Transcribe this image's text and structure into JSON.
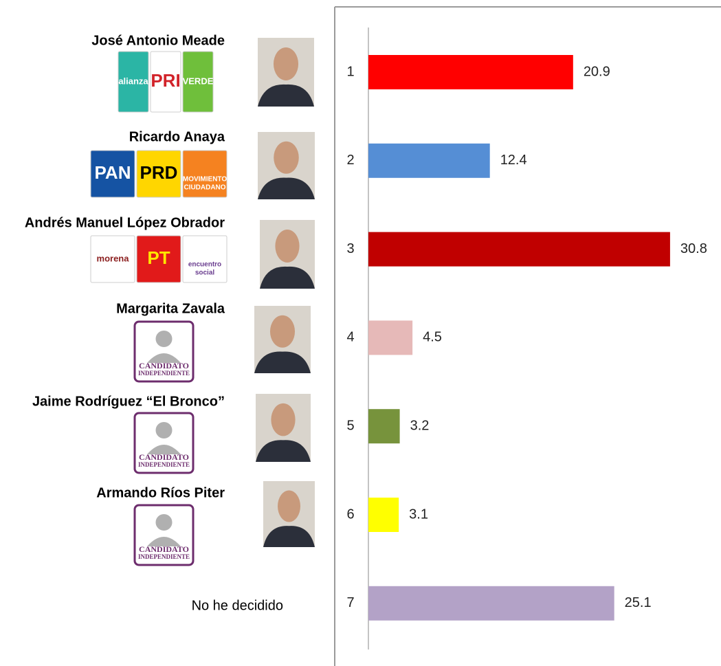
{
  "chart_data": {
    "type": "bar",
    "orientation": "horizontal",
    "categories": [
      "1",
      "2",
      "3",
      "4",
      "5",
      "6",
      "7"
    ],
    "values": [
      20.9,
      12.4,
      30.8,
      4.5,
      3.2,
      3.1,
      25.1
    ],
    "colors": [
      "#ff0000",
      "#558ed5",
      "#c00000",
      "#e6b9b8",
      "#77933c",
      "#ffff00",
      "#b3a2c7"
    ]
  },
  "candidates": [
    {
      "name": "José Antonio Meade",
      "logos": [
        {
          "lines": [
            "alianza"
          ],
          "bg": "#2bb5a5",
          "fg": "#ffffff"
        },
        {
          "lines": [
            "PRI"
          ],
          "bg": "#ffffff",
          "fg": "#d2232a"
        },
        {
          "lines": [
            "VERDE"
          ],
          "bg": "#6fbf3b",
          "fg": "#ffffff"
        }
      ]
    },
    {
      "name": "Ricardo Anaya",
      "logos": [
        {
          "lines": [
            "PAN"
          ],
          "bg": "#1553a3",
          "fg": "#ffffff"
        },
        {
          "lines": [
            "PRD"
          ],
          "bg": "#ffd600",
          "fg": "#000000"
        },
        {
          "lines": [
            "MOVIMIENTO",
            "CIUDADANO"
          ],
          "bg": "#f58220",
          "fg": "#ffffff"
        }
      ]
    },
    {
      "name": "Andrés Manuel López Obrador",
      "logos": [
        {
          "lines": [
            "morena"
          ],
          "bg": "#ffffff",
          "fg": "#8b1e1e"
        },
        {
          "lines": [
            "PT"
          ],
          "bg": "#e11a1a",
          "fg": "#ffe600"
        },
        {
          "lines": [
            "encuentro",
            "social"
          ],
          "bg": "#ffffff",
          "fg": "#6a3d8f"
        }
      ]
    },
    {
      "name": "Margarita Zavala",
      "logos": [
        {
          "lines": [
            "CANDIDATO",
            "INDEPENDIENTE"
          ],
          "bg": "#ffffff",
          "fg": "#6d2d6d"
        }
      ]
    },
    {
      "name": "Jaime Rodríguez “El Bronco”",
      "logos": [
        {
          "lines": [
            "CANDIDATO",
            "INDEPENDIENTE"
          ],
          "bg": "#ffffff",
          "fg": "#6d2d6d"
        }
      ]
    },
    {
      "name": "Armando Ríos Piter",
      "logos": [
        {
          "lines": [
            "CANDIDATO",
            "INDEPENDIENTE"
          ],
          "bg": "#ffffff",
          "fg": "#6d2d6d"
        }
      ]
    }
  ],
  "undecided": "No he decidido"
}
